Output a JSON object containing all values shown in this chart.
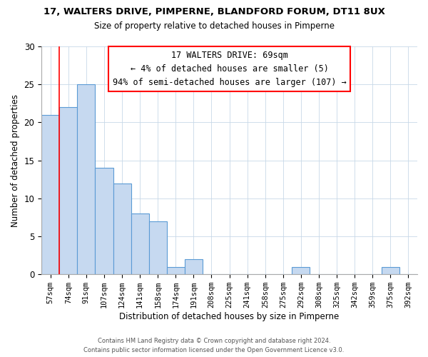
{
  "title": "17, WALTERS DRIVE, PIMPERNE, BLANDFORD FORUM, DT11 8UX",
  "subtitle": "Size of property relative to detached houses in Pimperne",
  "xlabel": "Distribution of detached houses by size in Pimperne",
  "ylabel": "Number of detached properties",
  "bin_labels": [
    "57sqm",
    "74sqm",
    "91sqm",
    "107sqm",
    "124sqm",
    "141sqm",
    "158sqm",
    "174sqm",
    "191sqm",
    "208sqm",
    "225sqm",
    "241sqm",
    "258sqm",
    "275sqm",
    "292sqm",
    "308sqm",
    "325sqm",
    "342sqm",
    "359sqm",
    "375sqm",
    "392sqm"
  ],
  "bar_values": [
    21,
    22,
    25,
    14,
    12,
    8,
    7,
    1,
    2,
    0,
    0,
    0,
    0,
    0,
    1,
    0,
    0,
    0,
    0,
    1,
    0
  ],
  "bar_color": "#c6d9f0",
  "bar_edge_color": "#5b9bd5",
  "annotation_title": "17 WALTERS DRIVE: 69sqm",
  "annotation_line1": "← 4% of detached houses are smaller (5)",
  "annotation_line2": "94% of semi-detached houses are larger (107) →",
  "redline_x": 0.5,
  "ylim": [
    0,
    30
  ],
  "yticks": [
    0,
    5,
    10,
    15,
    20,
    25,
    30
  ],
  "footer1": "Contains HM Land Registry data © Crown copyright and database right 2024.",
  "footer2": "Contains public sector information licensed under the Open Government Licence v3.0."
}
